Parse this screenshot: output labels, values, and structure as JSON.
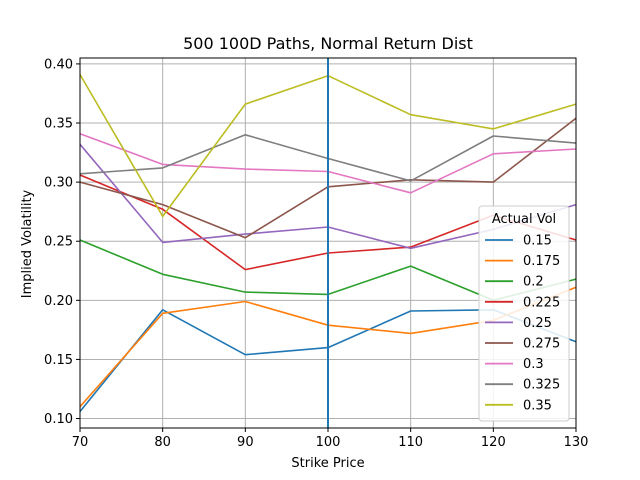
{
  "chart_data": {
    "type": "line",
    "title": "500 100D Paths, Normal Return Dist",
    "xlabel": "Strike Price",
    "ylabel": "Implied Volatility",
    "xlim": [
      70,
      130
    ],
    "ylim": [
      0.092,
      0.405
    ],
    "xticks": [
      70,
      80,
      90,
      100,
      110,
      120,
      130
    ],
    "yticks": [
      0.1,
      0.15,
      0.2,
      0.25,
      0.3,
      0.35,
      0.4
    ],
    "xtick_labels": [
      "70",
      "80",
      "90",
      "100",
      "110",
      "120",
      "130"
    ],
    "ytick_labels": [
      "0.10",
      "0.15",
      "0.20",
      "0.25",
      "0.30",
      "0.35",
      "0.40"
    ],
    "grid": true,
    "vline_x": 100,
    "legend_title": "Actual Vol",
    "legend_position": "lower right",
    "x": [
      70,
      80,
      90,
      100,
      110,
      120,
      130
    ],
    "series": [
      {
        "name": "0.15",
        "color": "#1f77b4",
        "values": [
          0.106,
          0.192,
          0.154,
          0.16,
          0.191,
          0.192,
          0.165
        ]
      },
      {
        "name": "0.175",
        "color": "#ff7f0e",
        "values": [
          0.11,
          0.189,
          0.199,
          0.179,
          0.172,
          0.183,
          0.211
        ]
      },
      {
        "name": "0.2",
        "color": "#2ca02c",
        "values": [
          0.251,
          0.222,
          0.207,
          0.205,
          0.229,
          0.2,
          0.218
        ]
      },
      {
        "name": "0.225",
        "color": "#d62728",
        "values": [
          0.306,
          0.277,
          0.226,
          0.24,
          0.245,
          0.272,
          0.251
        ]
      },
      {
        "name": "0.25",
        "color": "#9467bd",
        "values": [
          0.332,
          0.249,
          0.256,
          0.262,
          0.244,
          0.26,
          0.281
        ]
      },
      {
        "name": "0.275",
        "color": "#8c564b",
        "values": [
          0.3,
          0.281,
          0.253,
          0.296,
          0.302,
          0.3,
          0.354
        ]
      },
      {
        "name": "0.3",
        "color": "#e377c2",
        "values": [
          0.341,
          0.315,
          0.311,
          0.309,
          0.291,
          0.324,
          0.328
        ]
      },
      {
        "name": "0.325",
        "color": "#7f7f7f",
        "values": [
          0.307,
          0.312,
          0.34,
          0.32,
          0.301,
          0.339,
          0.333
        ]
      },
      {
        "name": "0.35",
        "color": "#bcbd22",
        "values": [
          0.391,
          0.271,
          0.366,
          0.39,
          0.357,
          0.345,
          0.366
        ]
      }
    ]
  }
}
